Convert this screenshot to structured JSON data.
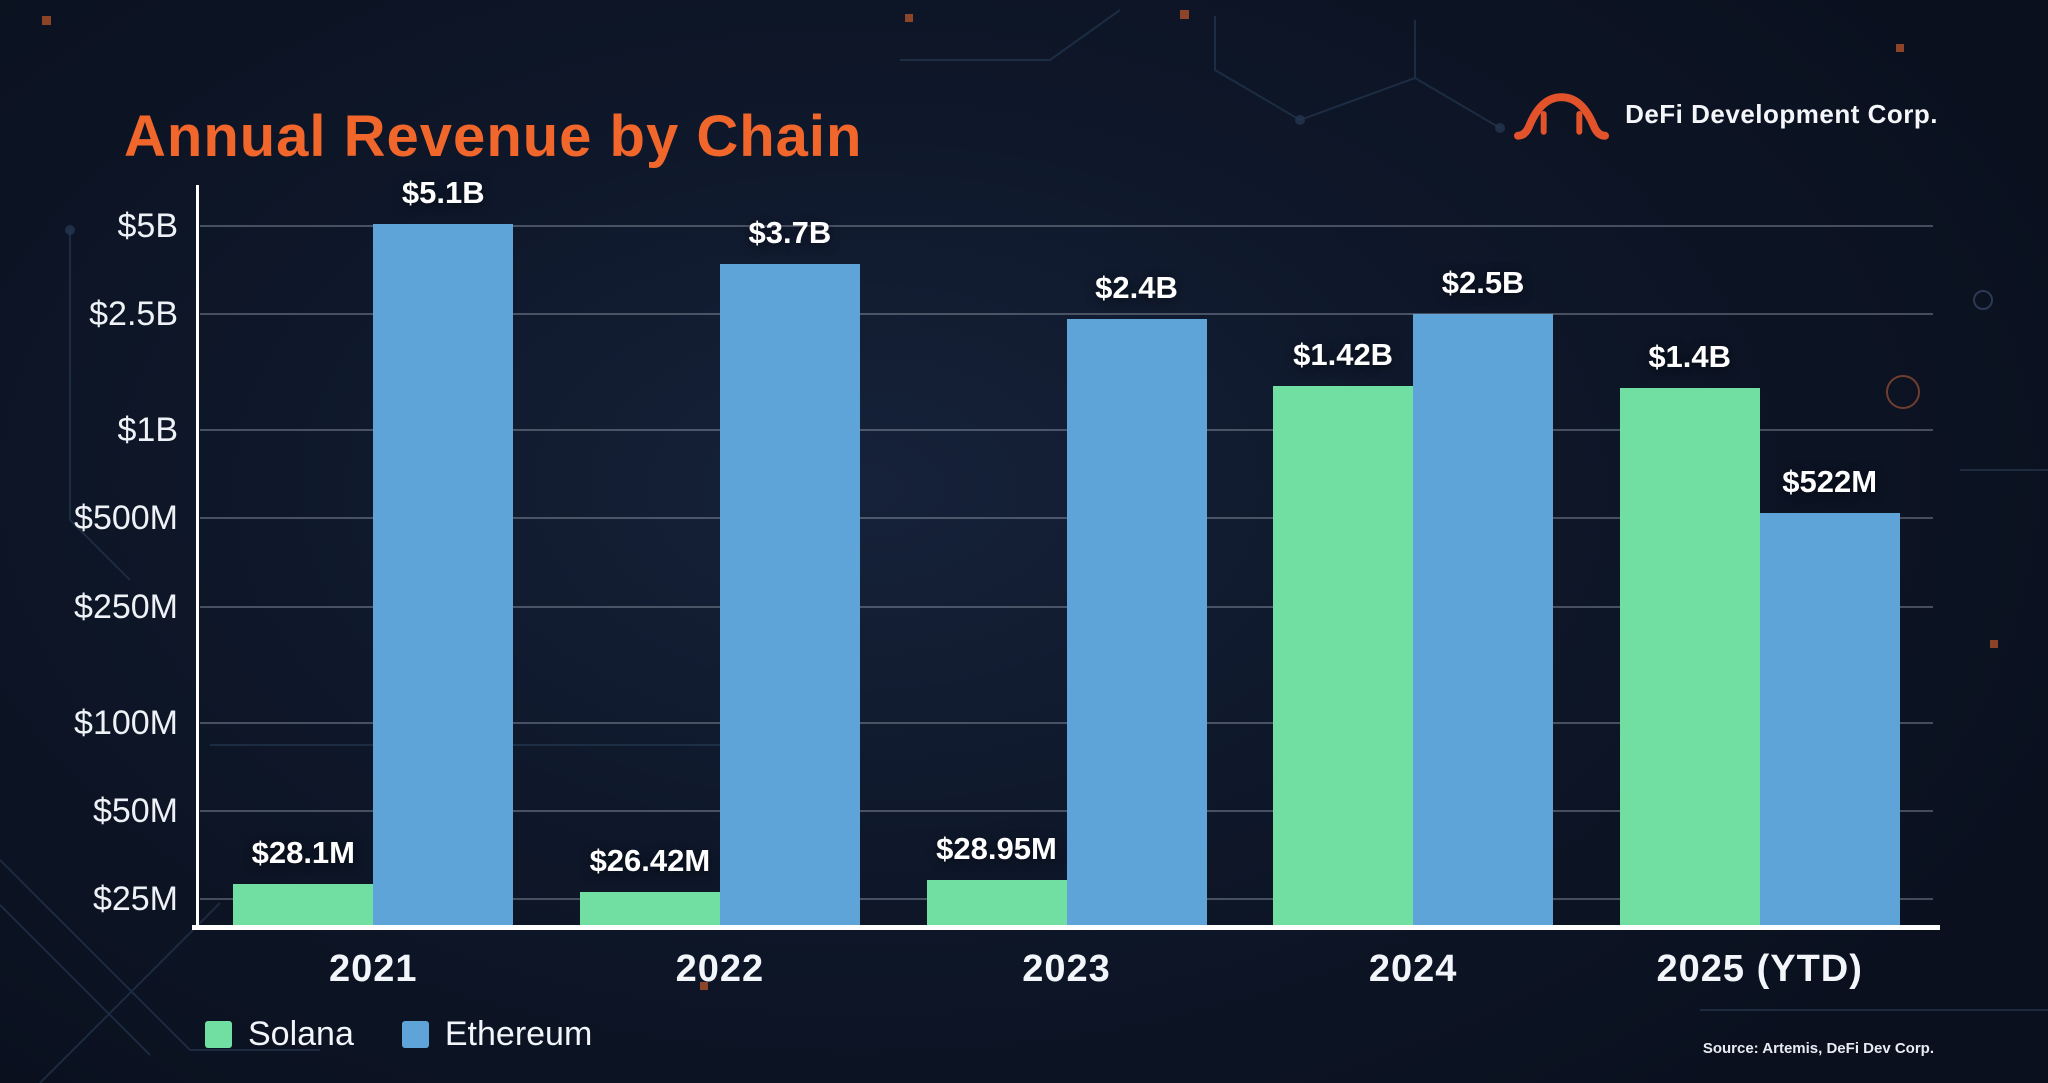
{
  "header": {
    "title": "Annual Revenue by Chain",
    "title_color": "#f0662b",
    "brand": "DeFi Development Corp.",
    "logo_icon": "bridge-arch-icon"
  },
  "chart_data": {
    "type": "bar",
    "title": "Annual Revenue by Chain",
    "y_scale": "log",
    "grid": true,
    "legend_position": "bottom-left",
    "categories": [
      "2021",
      "2022",
      "2023",
      "2024",
      "2025 (YTD)"
    ],
    "series": [
      {
        "name": "Solana",
        "color": "#72dfa2",
        "values": [
          28100000,
          26420000,
          28950000,
          1420000000,
          1400000000
        ],
        "labels": [
          "$28.1M",
          "$26.42M",
          "$28.95M",
          "$1.42B",
          "$1.4B"
        ]
      },
      {
        "name": "Ethereum",
        "color": "#5fa4d8",
        "values": [
          5100000000,
          3700000000,
          2400000000,
          2500000000,
          522000000
        ],
        "labels": [
          "$5.1B",
          "$3.7B",
          "$2.4B",
          "$2.5B",
          "$522M"
        ]
      }
    ],
    "y_ticks": [
      {
        "value": 5000000000,
        "label": "$5B"
      },
      {
        "value": 2500000000,
        "label": "$2.5B"
      },
      {
        "value": 1000000000,
        "label": "$1B"
      },
      {
        "value": 500000000,
        "label": "$500M"
      },
      {
        "value": 250000000,
        "label": "$250M"
      },
      {
        "value": 100000000,
        "label": "$100M"
      },
      {
        "value": 50000000,
        "label": "$50M"
      },
      {
        "value": 25000000,
        "label": "$25M"
      }
    ],
    "ylim": [
      20000000,
      6900000000
    ],
    "xlabel": "",
    "ylabel": ""
  },
  "source": "Source: Artemis, DeFi Dev Corp."
}
